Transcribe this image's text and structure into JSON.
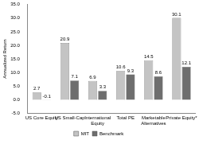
{
  "chart_data": {
    "type": "bar",
    "y_label": "Annualized Return",
    "categories": [
      "US Core Equity",
      "US Small-Cap",
      "International Equity",
      "Total PE",
      "Marketable Alternatives",
      "Private Equity*"
    ],
    "series": [
      {
        "name": "MIT",
        "color": "#c4c4c4",
        "values": [
          2.7,
          20.9,
          6.9,
          10.6,
          14.5,
          30.1
        ]
      },
      {
        "name": "Benchmark",
        "color": "#6e6e6e",
        "values": [
          -0.1,
          7.1,
          3.3,
          9.3,
          8.6,
          12.1
        ]
      }
    ],
    "ylim": [
      -5,
      35
    ],
    "yticks": [
      {
        "value": -5,
        "label": "-5.0"
      },
      {
        "value": 0,
        "label": "0.0"
      },
      {
        "value": 5,
        "label": "5.0"
      },
      {
        "value": 10,
        "label": "10.0"
      },
      {
        "value": 15,
        "label": "15.0"
      },
      {
        "value": 20,
        "label": "20.0"
      },
      {
        "value": 25,
        "label": "25.0"
      },
      {
        "value": 30,
        "label": "30.0"
      },
      {
        "value": 35,
        "label": "35.0"
      }
    ],
    "grid": false,
    "legend": "bottom",
    "data_labels": true
  }
}
